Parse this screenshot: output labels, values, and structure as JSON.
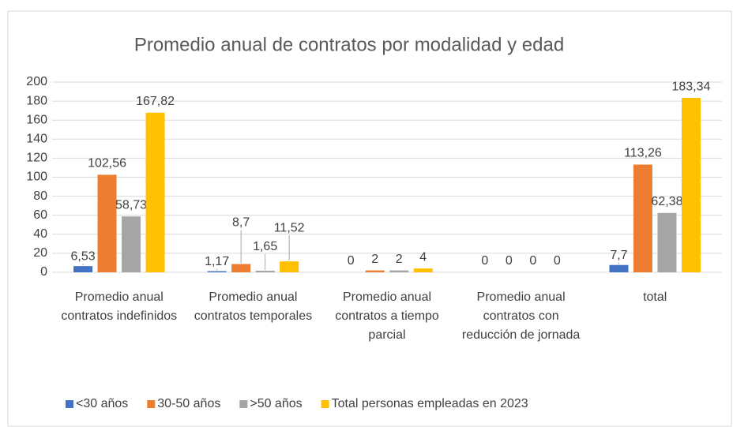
{
  "chart_data": {
    "type": "bar",
    "title": "Promedio anual de contratos por modalidad y edad",
    "categories": [
      "Promedio anual contratos indefinidos",
      "Promedio anual contratos temporales",
      "Promedio anual contratos a tiempo parcial",
      "Promedio anual contratos con reducción de jornada",
      "total"
    ],
    "series": [
      {
        "name": "<30 años",
        "color": "#4472c4",
        "values": [
          6.53,
          1.17,
          0,
          0,
          7.7
        ],
        "value_labels": [
          "6,53",
          "1,17",
          "0",
          "0",
          "7,7"
        ]
      },
      {
        "name": "30-50 años",
        "color": "#ed7d31",
        "values": [
          102.56,
          8.7,
          2,
          0,
          113.26
        ],
        "value_labels": [
          "102,56",
          "8,7",
          "2",
          "0",
          "113,26"
        ]
      },
      {
        "name": ">50 años",
        "color": "#a5a5a5",
        "values": [
          58.73,
          1.65,
          2,
          0,
          62.38
        ],
        "value_labels": [
          "58,73",
          "1,65",
          "2",
          "0",
          "62,38"
        ]
      },
      {
        "name": "Total personas empleadas en 2023",
        "color": "#ffc000",
        "values": [
          167.82,
          11.52,
          4,
          0,
          183.34
        ],
        "value_labels": [
          "167,82",
          "11,52",
          "4",
          "0",
          "183,34"
        ]
      }
    ],
    "ylim": [
      0,
      200
    ],
    "yticks": [
      0,
      20,
      40,
      60,
      80,
      100,
      120,
      140,
      160,
      180,
      200
    ],
    "grid": true,
    "legend": "bottom"
  }
}
